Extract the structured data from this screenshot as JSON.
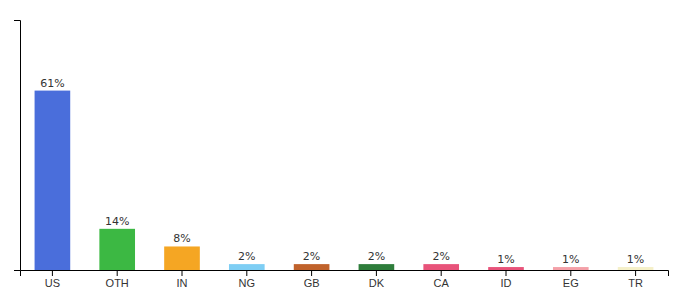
{
  "chart_data": {
    "type": "bar",
    "categories": [
      "US",
      "OTH",
      "IN",
      "NG",
      "GB",
      "DK",
      "CA",
      "ID",
      "EG",
      "TR"
    ],
    "values": [
      61,
      14,
      8,
      2,
      2,
      2,
      2,
      1,
      1,
      1
    ],
    "value_labels": [
      "61%",
      "14%",
      "8%",
      "2%",
      "2%",
      "2%",
      "2%",
      "1%",
      "1%",
      "1%"
    ],
    "colors": [
      "#4a6edb",
      "#3cb843",
      "#f5a623",
      "#7ecef4",
      "#c0622b",
      "#2e7d3b",
      "#e8537a",
      "#e8537a",
      "#f4a0a8",
      "#f5f0c8"
    ],
    "ylim": [
      0,
      85
    ],
    "data_labels": true,
    "tick_labels": "x",
    "grid": false
  }
}
